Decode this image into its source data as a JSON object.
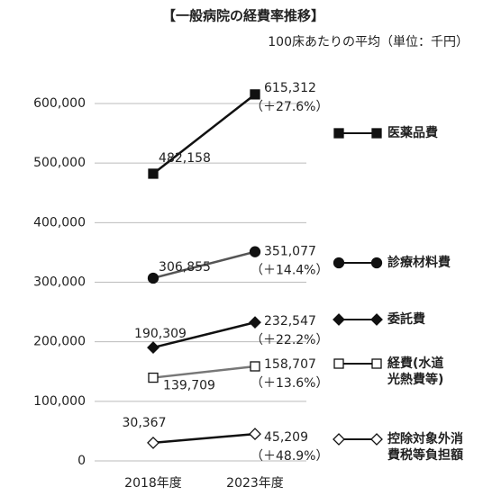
{
  "chart_data": {
    "type": "line",
    "title": "【一般病院の経費率推移】",
    "subtitle": "100床あたりの平均（単位：千円）",
    "categories": [
      "2018年度",
      "2023年度"
    ],
    "ylim": [
      0,
      600000
    ],
    "yticks": [
      0,
      {
        "value": 100000,
        "label": "100,000"
      },
      {
        "value": 200000,
        "label": "200,000"
      },
      {
        "value": 300000,
        "label": "300,000"
      },
      {
        "value": 400000,
        "label": "400,000"
      },
      {
        "value": 500000,
        "label": "500,000"
      },
      {
        "value": 600000,
        "label": "600,000"
      }
    ],
    "grid": true,
    "legend": "right",
    "series": [
      {
        "name": "医薬品費",
        "color": "#111111",
        "marker": "square",
        "values": [
          482158,
          615312
        ],
        "value_labels": [
          "482,158",
          "615,312"
        ],
        "change_label": "（＋27.6%）"
      },
      {
        "name": "診療材料費",
        "color": "#555555",
        "marker": "circle",
        "values": [
          306855,
          351077
        ],
        "value_labels": [
          "306,855",
          "351,077"
        ],
        "change_label": "（＋14.4%）"
      },
      {
        "name": "委託費",
        "color": "#111111",
        "marker": "diamond",
        "values": [
          190309,
          232547
        ],
        "value_labels": [
          "190,309",
          "232,547"
        ],
        "change_label": "（＋22.2%）"
      },
      {
        "name": "経費(水道\n光熱費等)",
        "color": "#777777",
        "marker": "square-open",
        "values": [
          139709,
          158707
        ],
        "value_labels": [
          "139,709",
          "158,707"
        ],
        "change_label": "（＋13.6%）"
      },
      {
        "name": "控除対象外消\n費税等負担額",
        "color": "#111111",
        "marker": "diamond-open",
        "values": [
          30367,
          45209
        ],
        "value_labels": [
          "30,367",
          "45,209"
        ],
        "change_label": "（＋48.9%）"
      }
    ]
  }
}
